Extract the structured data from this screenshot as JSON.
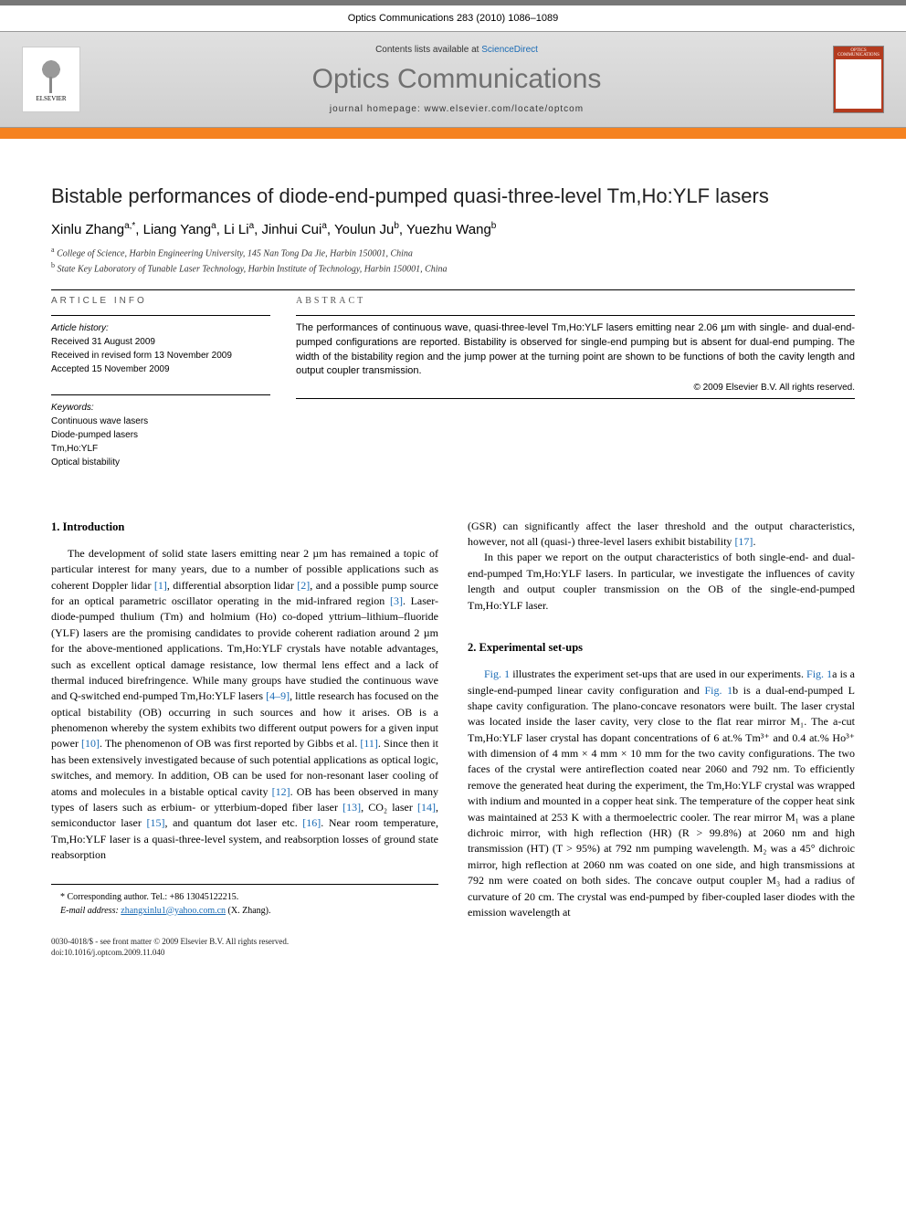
{
  "journal_ref": "Optics Communications 283 (2010) 1086–1089",
  "banner": {
    "contents_prefix": "Contents lists available at ",
    "contents_link": "ScienceDirect",
    "journal_title": "Optics Communications",
    "homepage_prefix": "journal homepage: ",
    "homepage_url": "www.elsevier.com/locate/optcom",
    "elsevier_label": "ELSEVIER",
    "cover_label": "OPTICS COMMUNICATIONS"
  },
  "colors": {
    "orange_bar": "#f58220",
    "link": "#1a6bb5",
    "banner_bg_top": "#e0e0e0",
    "banner_bg_bottom": "#d0d0d0",
    "cover_bg": "#b33a1e",
    "journal_title_color": "#707070"
  },
  "paper": {
    "title": "Bistable performances of diode-end-pumped quasi-three-level Tm,Ho:YLF lasers",
    "authors_html": "Xinlu Zhang<sup>a,*</sup>, Liang Yang<sup>a</sup>, Li Li<sup>a</sup>, Jinhui Cui<sup>a</sup>, Youlun Ju<sup>b</sup>, Yuezhu Wang<sup>b</sup>",
    "affiliations": {
      "a": "College of Science, Harbin Engineering University, 145 Nan Tong Da Jie, Harbin 150001, China",
      "b": "State Key Laboratory of Tunable Laser Technology, Harbin Institute of Technology, Harbin 150001, China"
    }
  },
  "article_info": {
    "label": "ARTICLE INFO",
    "history_label": "Article history:",
    "received": "Received 31 August 2009",
    "revised": "Received in revised form 13 November 2009",
    "accepted": "Accepted 15 November 2009",
    "keywords_label": "Keywords:",
    "keywords": [
      "Continuous wave lasers",
      "Diode-pumped lasers",
      "Tm,Ho:YLF",
      "Optical bistability"
    ]
  },
  "abstract": {
    "label": "ABSTRACT",
    "text": "The performances of continuous wave, quasi-three-level Tm,Ho:YLF lasers emitting near 2.06 µm with single- and dual-end-pumped configurations are reported. Bistability is observed for single-end pumping but is absent for dual-end pumping. The width of the bistability region and the jump power at the turning point are shown to be functions of both the cavity length and output coupler transmission.",
    "copyright": "© 2009 Elsevier B.V. All rights reserved."
  },
  "sections": {
    "intro_heading": "1. Introduction",
    "intro_p1_a": "The development of solid state lasers emitting near 2 µm has remained a topic of particular interest for many years, due to a number of possible applications such as coherent Doppler lidar ",
    "intro_p1_b": ", differential absorption lidar ",
    "intro_p1_c": ", and a possible pump source for an optical parametric oscillator operating in the mid-infrared region ",
    "intro_p1_d": ". Laser-diode-pumped thulium (Tm) and holmium (Ho) co-doped yttrium–lithium–fluoride (YLF) lasers are the promising candidates to provide coherent radiation around 2 µm for the above-mentioned applications. Tm,Ho:YLF crystals have notable advantages, such as excellent optical damage resistance, low thermal lens effect and a lack of thermal induced birefringence. While many groups have studied the continuous wave and Q-switched end-pumped Tm,Ho:YLF lasers ",
    "intro_p1_e": ", little research has focused on the optical bistability (OB) occurring in such sources and how it arises. OB is a phenomenon whereby the system exhibits two different output powers for a given input power ",
    "intro_p1_f": ". The phenomenon of OB was first reported by Gibbs et al. ",
    "intro_p1_g": ". Since then it has been extensively investigated because of such potential applications as optical logic, switches, and memory. In addition, OB can be used for non-resonant laser cooling of atoms and molecules in a bistable optical cavity ",
    "intro_p1_h": ". OB has been observed in many types of lasers such as erbium- or ytterbium-doped fiber laser ",
    "intro_p1_i": ", CO₂ laser ",
    "intro_p1_j": ", semiconductor laser ",
    "intro_p1_k": ", and quantum dot laser etc. ",
    "intro_p1_l": ". Near room temperature, Tm,Ho:YLF laser is a quasi-three-level system, and reabsorption losses of ground state reabsorption ",
    "intro_p2_a": "(GSR) can significantly affect the laser threshold and the output characteristics, however, not all (quasi-) three-level lasers exhibit bistability ",
    "intro_p2_b": ".",
    "intro_p3": "In this paper we report on the output characteristics of both single-end- and dual-end-pumped Tm,Ho:YLF lasers. In particular, we investigate the influences of cavity length and output coupler transmission on the OB of the single-end-pumped Tm,Ho:YLF laser.",
    "exp_heading": "2. Experimental set-ups",
    "exp_p1_a": "",
    "exp_fig1": "Fig. 1",
    "exp_p1_b": " illustrates the experiment set-ups that are used in our experiments. ",
    "exp_fig1a": "Fig. 1",
    "exp_p1_c": "a is a single-end-pumped linear cavity configuration and ",
    "exp_fig1b": "Fig. 1",
    "exp_p1_d": "b is a dual-end-pumped L shape cavity configuration. The plano-concave resonators were built. The laser crystal was located inside the laser cavity, very close to the flat rear mirror M₁. The a-cut Tm,Ho:YLF laser crystal has dopant concentrations of 6 at.% Tm³⁺ and 0.4 at.% Ho³⁺ with dimension of 4 mm × 4 mm × 10 mm for the two cavity configurations. The two faces of the crystal were antireflection coated near 2060 and 792 nm. To efficiently remove the generated heat during the experiment, the Tm,Ho:YLF crystal was wrapped with indium and mounted in a copper heat sink. The temperature of the copper heat sink was maintained at 253 K with a thermoelectric cooler. The rear mirror M₁ was a plane dichroic mirror, with high reflection (HR) (R > 99.8%) at 2060 nm and high transmission (HT) (T > 95%) at 792 nm pumping wavelength. M₂ was a 45° dichroic mirror, high reflection at 2060 nm was coated on one side, and high transmissions at 792 nm were coated on both sides. The concave output coupler M₃ had a radius of curvature of 20 cm. The crystal was end-pumped by fiber-coupled laser diodes with the emission wavelength at"
  },
  "refs": {
    "r1": "[1]",
    "r2": "[2]",
    "r3": "[3]",
    "r4_9": "[4–9]",
    "r10": "[10]",
    "r11": "[11]",
    "r12": "[12]",
    "r13": "[13]",
    "r14": "[14]",
    "r15": "[15]",
    "r16": "[16]",
    "r17": "[17]"
  },
  "footnote": {
    "corresponding": "* Corresponding author. Tel.: +86 13045122215.",
    "email_label": "E-mail address:",
    "email": "zhangxinlu1@yahoo.com.cn",
    "email_suffix": "(X. Zhang)."
  },
  "bottom": {
    "issn": "0030-4018/$ - see front matter © 2009 Elsevier B.V. All rights reserved.",
    "doi": "doi:10.1016/j.optcom.2009.11.040"
  }
}
